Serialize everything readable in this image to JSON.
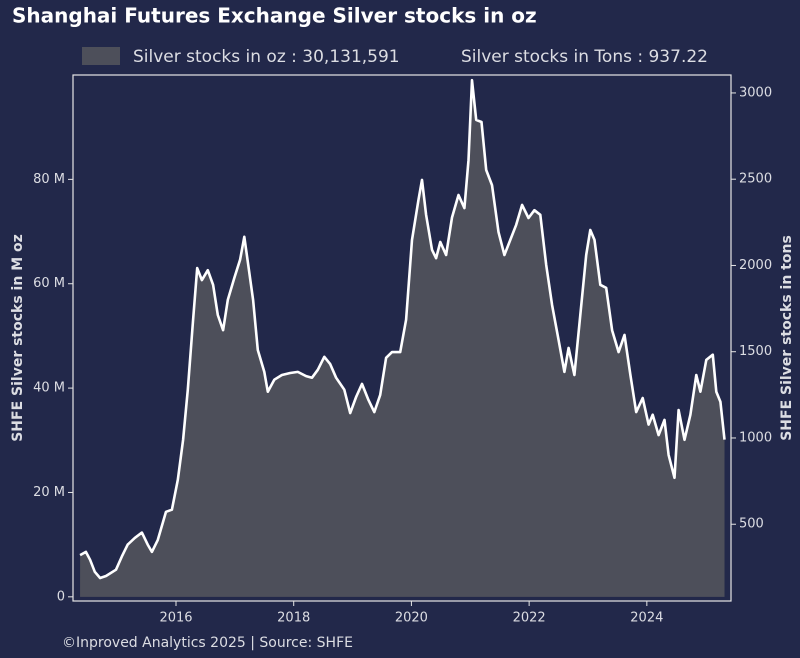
{
  "chart_data": {
    "type": "area",
    "title": "Shanghai Futures Exchange Silver stocks in oz",
    "legend_note": "Silver stocks in Tons : 937.22",
    "ylabel": "SHFE Silver stocks in M oz",
    "y2label": "SHFE Silver stocks in tons",
    "footer": "©Inproved Analytics 2025 | Source: SHFE",
    "x": [
      2014.37,
      2014.47,
      2014.54,
      2014.62,
      2014.71,
      2014.81,
      2014.98,
      2015.08,
      2015.18,
      2015.3,
      2015.42,
      2015.52,
      2015.59,
      2015.69,
      2015.83,
      2015.93,
      2016.03,
      2016.12,
      2016.2,
      2016.29,
      2016.36,
      2016.44,
      2016.54,
      2016.63,
      2016.71,
      2016.8,
      2016.88,
      2016.99,
      2017.09,
      2017.16,
      2017.22,
      2017.31,
      2017.39,
      2017.5,
      2017.56,
      2017.67,
      2017.8,
      2017.94,
      2018.07,
      2018.21,
      2018.31,
      2018.41,
      2018.52,
      2018.62,
      2018.72,
      2018.86,
      2018.96,
      2019.06,
      2019.16,
      2019.27,
      2019.37,
      2019.47,
      2019.57,
      2019.67,
      2019.81,
      2019.91,
      2020.01,
      2020.12,
      2020.18,
      2020.25,
      2020.35,
      2020.42,
      2020.49,
      2020.59,
      2020.69,
      2020.8,
      2020.9,
      2020.97,
      2021.03,
      2021.1,
      2021.19,
      2021.27,
      2021.37,
      2021.48,
      2021.58,
      2021.68,
      2021.78,
      2021.88,
      2021.99,
      2022.09,
      2022.19,
      2022.29,
      2022.39,
      2022.5,
      2022.6,
      2022.67,
      2022.77,
      2022.87,
      2022.97,
      2023.04,
      2023.11,
      2023.21,
      2023.31,
      2023.41,
      2023.52,
      2023.62,
      2023.72,
      2023.82,
      2023.93,
      2024.03,
      2024.1,
      2024.2,
      2024.3,
      2024.37,
      2024.47,
      2024.54,
      2024.64,
      2024.74,
      2024.84,
      2024.91,
      2025.01,
      2025.12,
      2025.18,
      2025.25,
      2025.32
    ],
    "series": [
      {
        "name": "Silver stocks in oz : 30,131,591",
        "color": "#4d4f5a",
        "line_color": "#ffffff",
        "values": [
          8.0,
          8.6,
          7.1,
          4.8,
          3.6,
          4.0,
          5.2,
          7.7,
          10.0,
          11.3,
          12.3,
          10.0,
          8.6,
          10.9,
          16.3,
          16.7,
          22.4,
          30.1,
          39.7,
          53.1,
          63.0,
          60.7,
          62.6,
          59.8,
          54.0,
          51.1,
          56.9,
          61.1,
          64.6,
          69.0,
          64.2,
          56.9,
          47.3,
          43.1,
          39.3,
          41.6,
          42.5,
          42.9,
          43.1,
          42.3,
          42.0,
          43.5,
          46.0,
          44.6,
          42.0,
          39.7,
          35.2,
          38.3,
          40.8,
          37.7,
          35.4,
          38.7,
          45.8,
          46.9,
          46.9,
          53.1,
          68.4,
          76.1,
          79.9,
          73.2,
          66.5,
          64.9,
          68.0,
          65.5,
          72.7,
          77.0,
          74.5,
          83.7,
          99.0,
          91.4,
          91.0,
          81.8,
          78.9,
          69.9,
          65.5,
          68.4,
          71.3,
          75.1,
          72.6,
          74.1,
          73.2,
          63.6,
          55.9,
          49.2,
          43.1,
          47.7,
          42.5,
          54.0,
          65.5,
          70.3,
          68.4,
          59.8,
          59.2,
          51.1,
          46.9,
          50.2,
          42.5,
          35.4,
          38.1,
          33.0,
          34.9,
          31.0,
          33.9,
          27.2,
          22.8,
          35.8,
          30.1,
          34.9,
          42.5,
          39.3,
          45.4,
          46.4,
          39.3,
          37.4,
          30.13
        ]
      }
    ],
    "xlim": [
      2014.25,
      2025.43
    ],
    "xticks": [
      2016,
      2018,
      2020,
      2022,
      2024
    ],
    "ylim": [
      -0.8,
      100
    ],
    "yticks": [
      0,
      {
        "value": 20,
        "label": "20 M"
      },
      {
        "value": 40,
        "label": "40 M"
      },
      {
        "value": 60,
        "label": "60 M"
      },
      {
        "value": 80,
        "label": "80 M"
      }
    ],
    "y2lim": [
      55,
      3104
    ],
    "y2ticks": [
      500,
      1000,
      1500,
      2000,
      2500,
      3000
    ]
  }
}
